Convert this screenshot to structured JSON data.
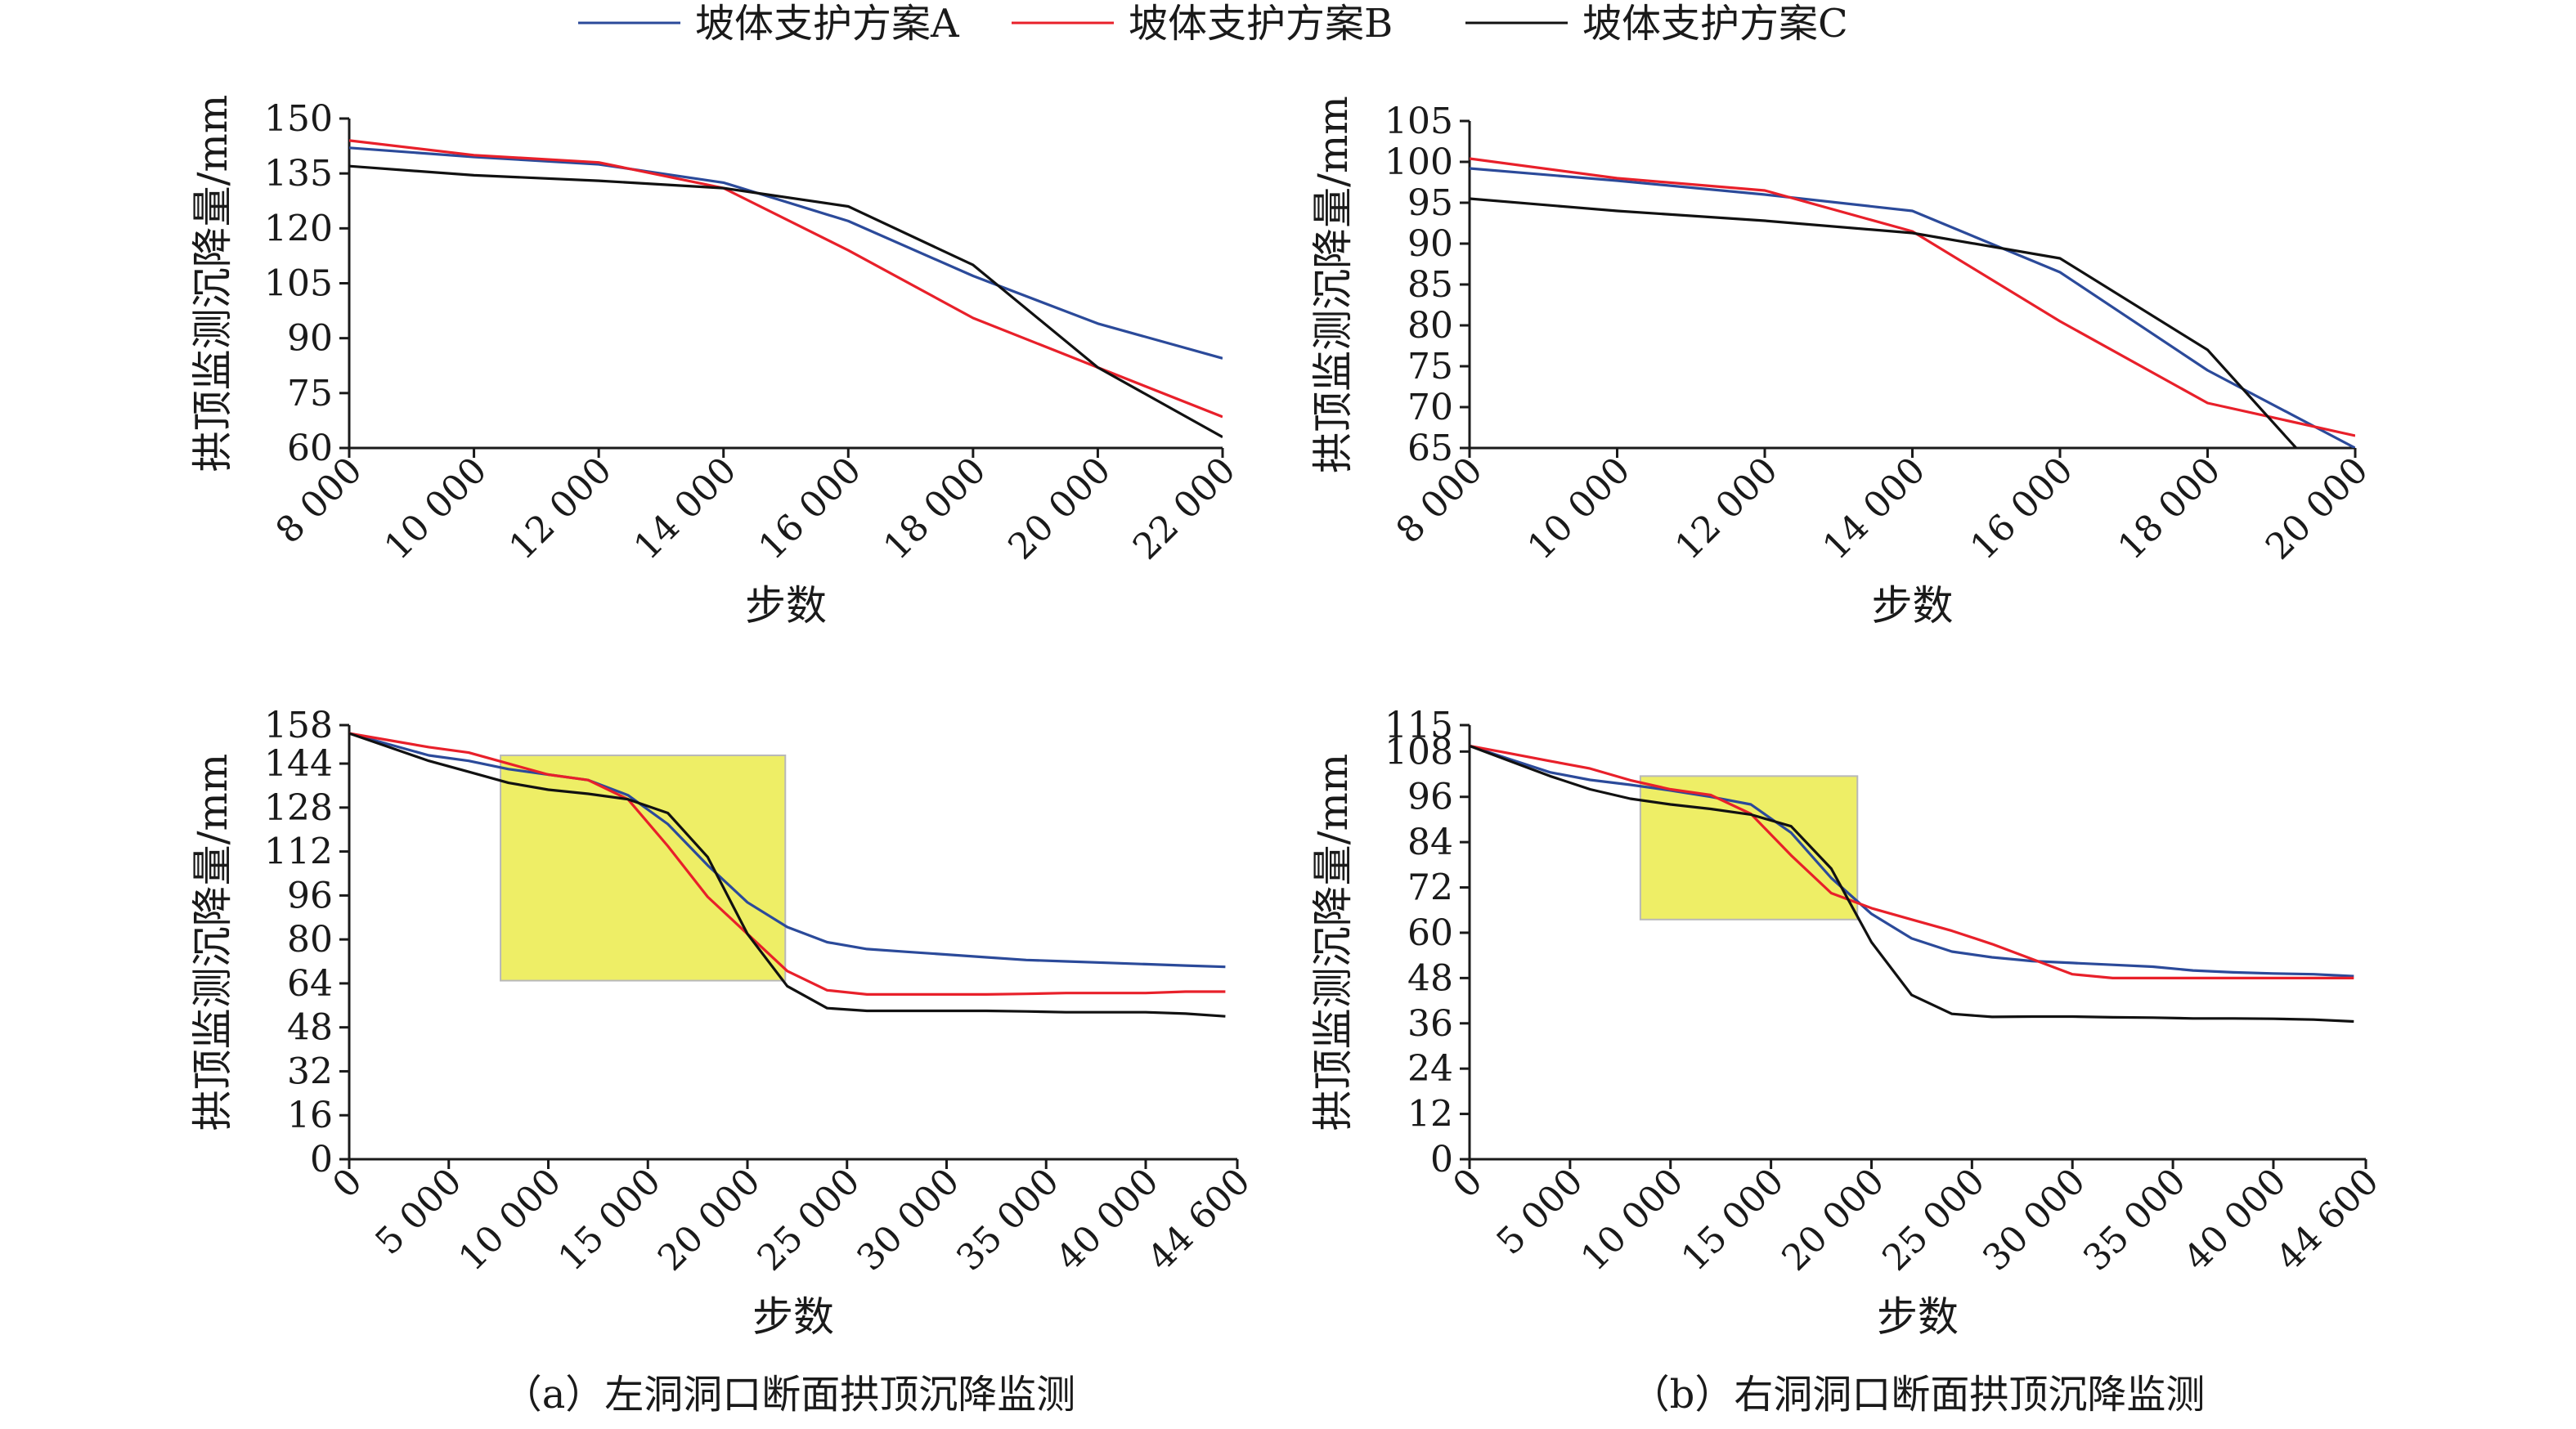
{
  "legend": {
    "entries": [
      {
        "name": "坡体支护方案A",
        "color": "#2b4a9a"
      },
      {
        "name": "坡体支护方案B",
        "color": "#e8202a"
      },
      {
        "name": "坡体支护方案C",
        "color": "#111111"
      }
    ]
  },
  "captions": {
    "a": "（a）左洞洞口断面拱顶沉降监测",
    "b": "（b）右洞洞口断面拱顶沉降监测"
  },
  "chart_data": [
    {
      "id": "left-top",
      "type": "line",
      "xlabel": "步数",
      "ylabel": "拱顶监测沉降量/mm",
      "xlim": [
        8000,
        22000
      ],
      "ylim": [
        60,
        150
      ],
      "xticks": [
        8000,
        10000,
        12000,
        14000,
        16000,
        18000,
        20000,
        22000
      ],
      "xtick_labels": [
        "8 000",
        "10 000",
        "12 000",
        "14 000",
        "16 000",
        "18 000",
        "20 000",
        "22 000"
      ],
      "yticks": [
        60,
        75,
        90,
        105,
        120,
        135,
        150
      ],
      "ytick_labels": [
        "60",
        "75",
        "90",
        "105",
        "120",
        "135",
        "150"
      ],
      "series": [
        {
          "name": "坡体支护方案A",
          "x": [
            8000,
            10000,
            12000,
            14000,
            16000,
            18000,
            20000,
            22000
          ],
          "y": [
            142,
            139.5,
            137.5,
            132.5,
            122,
            107,
            94,
            84.5
          ]
        },
        {
          "name": "坡体支护方案B",
          "x": [
            8000,
            10000,
            12000,
            14000,
            16000,
            18000,
            20000,
            22000
          ],
          "y": [
            144,
            140,
            138,
            131,
            114,
            95.5,
            82,
            68.5
          ]
        },
        {
          "name": "坡体支护方案C",
          "x": [
            8000,
            10000,
            12000,
            14000,
            16000,
            18000,
            20000,
            22000
          ],
          "y": [
            137,
            134.5,
            133,
            131,
            126,
            110,
            82,
            63
          ]
        }
      ]
    },
    {
      "id": "right-top",
      "type": "line",
      "xlabel": "步数",
      "ylabel": "拱顶监测沉降量/mm",
      "xlim": [
        8000,
        20000
      ],
      "ylim": [
        65,
        105
      ],
      "xticks": [
        8000,
        10000,
        12000,
        14000,
        16000,
        18000,
        20000
      ],
      "xtick_labels": [
        "8 000",
        "10 000",
        "12 000",
        "14 000",
        "16 000",
        "18 000",
        "20 000"
      ],
      "yticks": [
        65,
        70,
        75,
        80,
        85,
        90,
        95,
        100,
        105
      ],
      "ytick_labels": [
        "65",
        "70",
        "75",
        "80",
        "85",
        "90",
        "95",
        "100",
        "105"
      ],
      "series": [
        {
          "name": "坡体支护方案A",
          "x": [
            8000,
            10000,
            12000,
            14000,
            16000,
            18000,
            20000
          ],
          "y": [
            99.2,
            97.7,
            96,
            94,
            86.5,
            74.5,
            65
          ]
        },
        {
          "name": "坡体支护方案B",
          "x": [
            8000,
            10000,
            12000,
            14000,
            16000,
            18000,
            20000
          ],
          "y": [
            100.4,
            98,
            96.5,
            91.5,
            80.5,
            70.5,
            66.5
          ]
        },
        {
          "name": "坡体支护方案C",
          "x": [
            8000,
            10000,
            12000,
            14000,
            16000,
            18000,
            19200
          ],
          "y": [
            95.5,
            94,
            92.8,
            91.3,
            88.2,
            77,
            65
          ]
        }
      ]
    },
    {
      "id": "left-bottom",
      "type": "line",
      "xlabel": "步数",
      "ylabel": "拱顶监测沉降量/mm",
      "xlim": [
        0,
        44600
      ],
      "ylim": [
        0,
        158
      ],
      "xticks": [
        0,
        5000,
        10000,
        15000,
        20000,
        25000,
        30000,
        35000,
        40000,
        44600
      ],
      "xtick_labels": [
        "0",
        "5 000",
        "10 000",
        "15 000",
        "20 000",
        "25 000",
        "30 000",
        "35 000",
        "40 000",
        "44 600"
      ],
      "yticks": [
        0,
        16,
        32,
        48,
        64,
        80,
        96,
        112,
        128,
        144,
        158
      ],
      "ytick_labels": [
        "0",
        "16",
        "32",
        "48",
        "64",
        "80",
        "96",
        "112",
        "128",
        "144",
        "158"
      ],
      "highlight": {
        "x": [
          7600,
          21900
        ],
        "y": [
          65,
          147
        ]
      },
      "series": [
        {
          "name": "坡体支护方案A",
          "x": [
            0,
            2000,
            4000,
            6000,
            8000,
            10000,
            12000,
            14000,
            16000,
            18000,
            20000,
            22000,
            24000,
            26000,
            28000,
            30000,
            32000,
            34000,
            36000,
            38000,
            40000,
            42000,
            44000
          ],
          "y": [
            155,
            151,
            147,
            145,
            142,
            140,
            138,
            132.5,
            122,
            107,
            93.5,
            84.5,
            79,
            76.5,
            75.5,
            74.5,
            73.5,
            72.5,
            72,
            71.5,
            71,
            70.5,
            70
          ]
        },
        {
          "name": "坡体支护方案B",
          "x": [
            0,
            2000,
            4000,
            6000,
            8000,
            10000,
            12000,
            14000,
            16000,
            18000,
            20000,
            22000,
            24000,
            26000,
            28000,
            30000,
            32000,
            34000,
            36000,
            38000,
            40000,
            42000,
            44000
          ],
          "y": [
            155,
            152.5,
            150,
            148,
            144,
            140,
            138,
            131,
            114,
            95.5,
            82,
            68.5,
            61.5,
            60,
            60,
            60,
            60,
            60.2,
            60.5,
            60.5,
            60.5,
            61,
            61
          ]
        },
        {
          "name": "坡体支护方案C",
          "x": [
            0,
            2000,
            4000,
            6000,
            8000,
            10000,
            12000,
            14000,
            16000,
            18000,
            20000,
            22000,
            24000,
            26000,
            28000,
            30000,
            32000,
            34000,
            36000,
            38000,
            40000,
            42000,
            44000
          ],
          "y": [
            155,
            150,
            145,
            141,
            137,
            134.5,
            133,
            131,
            126,
            110,
            82,
            63,
            55,
            54,
            54,
            54,
            54,
            53.8,
            53.5,
            53.5,
            53.5,
            53,
            52
          ]
        }
      ]
    },
    {
      "id": "right-bottom",
      "type": "line",
      "xlabel": "步数",
      "ylabel": "拱顶监测沉降量/mm",
      "xlim": [
        0,
        44600
      ],
      "ylim": [
        0,
        115
      ],
      "xticks": [
        0,
        5000,
        10000,
        15000,
        20000,
        25000,
        30000,
        35000,
        40000,
        44600
      ],
      "xtick_labels": [
        "0",
        "5 000",
        "10 000",
        "15 000",
        "20 000",
        "25 000",
        "30 000",
        "35 000",
        "40 000",
        "44 600"
      ],
      "yticks": [
        0,
        12,
        24,
        36,
        48,
        60,
        72,
        84,
        96,
        108,
        115
      ],
      "ytick_labels": [
        "0",
        "12",
        "24",
        "36",
        "48",
        "60",
        "72",
        "84",
        "96",
        "108",
        "115"
      ],
      "highlight": {
        "x": [
          8500,
          19300
        ],
        "y": [
          63.5,
          101.5
        ]
      },
      "series": [
        {
          "name": "坡体支护方案A",
          "x": [
            0,
            2000,
            4000,
            6000,
            8000,
            10000,
            12000,
            14000,
            16000,
            18000,
            20000,
            22000,
            24000,
            26000,
            28000,
            30000,
            32000,
            34000,
            36000,
            38000,
            40000,
            42000,
            44000
          ],
          "y": [
            109.5,
            106,
            102.5,
            100.5,
            99.2,
            97.7,
            96,
            94,
            86.5,
            74.5,
            65,
            58.5,
            55,
            53.5,
            52.5,
            52,
            51.5,
            51,
            50,
            49.5,
            49.2,
            49,
            48.5
          ]
        },
        {
          "name": "坡体支护方案B",
          "x": [
            0,
            2000,
            4000,
            6000,
            8000,
            10000,
            12000,
            14000,
            16000,
            18000,
            20000,
            22000,
            24000,
            26000,
            28000,
            30000,
            32000,
            34000,
            36000,
            38000,
            40000,
            42000,
            44000
          ],
          "y": [
            109.5,
            107.5,
            105.5,
            103.5,
            100.4,
            98,
            96.5,
            91.5,
            80.5,
            70.5,
            66.5,
            63.5,
            60.5,
            57,
            53,
            49,
            48,
            48,
            48,
            48,
            48,
            48,
            48
          ]
        },
        {
          "name": "坡体支护方案C",
          "x": [
            0,
            2000,
            4000,
            6000,
            8000,
            10000,
            12000,
            14000,
            16000,
            18000,
            20000,
            22000,
            24000,
            26000,
            28000,
            30000,
            32000,
            34000,
            36000,
            38000,
            40000,
            42000,
            44000
          ],
          "y": [
            109.5,
            105.5,
            101.5,
            98,
            95.5,
            94,
            92.8,
            91.3,
            88.2,
            77,
            57.5,
            43.5,
            38.5,
            37.7,
            37.8,
            37.8,
            37.6,
            37.5,
            37.3,
            37.3,
            37.2,
            37,
            36.5
          ]
        }
      ]
    }
  ]
}
